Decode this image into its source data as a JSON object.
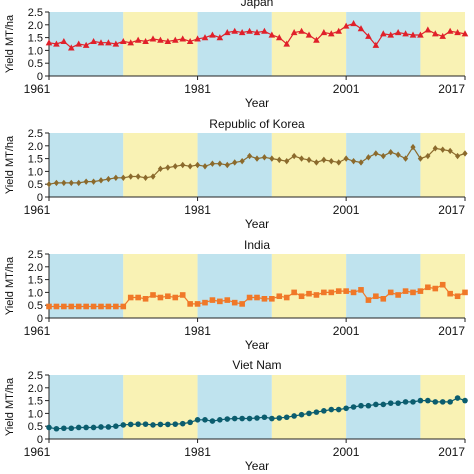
{
  "chart_data": [
    {
      "type": "line",
      "title": "Japan",
      "xlabel": "Year",
      "ylabel": "Yield MT/ha",
      "xlim": [
        1961,
        2017
      ],
      "ylim": [
        0,
        2.5
      ],
      "x_ticks": [
        1961,
        1981,
        2001,
        2017
      ],
      "y_ticks": [
        0,
        0.5,
        1.0,
        1.5,
        2.0,
        2.5
      ],
      "y_tick_labels": [
        "0",
        "0.5",
        "1.0",
        "1.5",
        "2.0",
        "2.5"
      ],
      "grid": false,
      "background_bands": [
        {
          "from": 1961,
          "to": 1971,
          "color": "#bfe3ee"
        },
        {
          "from": 1971,
          "to": 1981,
          "color": "#f9f2b4"
        },
        {
          "from": 1981,
          "to": 1991,
          "color": "#bfe3ee"
        },
        {
          "from": 1991,
          "to": 2001,
          "color": "#f9f2b4"
        },
        {
          "from": 2001,
          "to": 2011,
          "color": "#bfe3ee"
        },
        {
          "from": 2011,
          "to": 2017,
          "color": "#f9f2b4"
        }
      ],
      "series": [
        {
          "color": "#e0202a",
          "marker": "triangle",
          "x": [
            1961,
            1962,
            1963,
            1964,
            1965,
            1966,
            1967,
            1968,
            1969,
            1970,
            1971,
            1972,
            1973,
            1974,
            1975,
            1976,
            1977,
            1978,
            1979,
            1980,
            1981,
            1982,
            1983,
            1984,
            1985,
            1986,
            1987,
            1988,
            1989,
            1990,
            1991,
            1992,
            1993,
            1994,
            1995,
            1996,
            1997,
            1998,
            1999,
            2000,
            2001,
            2002,
            2003,
            2004,
            2005,
            2006,
            2007,
            2008,
            2009,
            2010,
            2011,
            2012,
            2013,
            2014,
            2015,
            2016,
            2017
          ],
          "values": [
            1.3,
            1.25,
            1.35,
            1.1,
            1.25,
            1.2,
            1.35,
            1.3,
            1.3,
            1.25,
            1.35,
            1.3,
            1.4,
            1.35,
            1.45,
            1.4,
            1.35,
            1.4,
            1.45,
            1.35,
            1.45,
            1.5,
            1.6,
            1.5,
            1.7,
            1.75,
            1.7,
            1.75,
            1.7,
            1.75,
            1.6,
            1.5,
            1.25,
            1.7,
            1.75,
            1.6,
            1.4,
            1.7,
            1.65,
            1.75,
            1.95,
            2.05,
            1.85,
            1.55,
            1.2,
            1.65,
            1.6,
            1.7,
            1.65,
            1.6,
            1.6,
            1.8,
            1.65,
            1.55,
            1.75,
            1.7,
            1.65
          ]
        }
      ]
    },
    {
      "type": "line",
      "title": "Republic of Korea",
      "xlabel": "Year",
      "ylabel": "Yield MT/ha",
      "xlim": [
        1961,
        2017
      ],
      "ylim": [
        0,
        2.5
      ],
      "x_ticks": [
        1961,
        1981,
        2001,
        2017
      ],
      "y_ticks": [
        0,
        0.5,
        1.0,
        1.5,
        2.0,
        2.5
      ],
      "y_tick_labels": [
        "0",
        "0.5",
        "1.0",
        "1.5",
        "2.0",
        "2.5"
      ],
      "grid": false,
      "background_bands": [
        {
          "from": 1961,
          "to": 1971,
          "color": "#bfe3ee"
        },
        {
          "from": 1971,
          "to": 1981,
          "color": "#f9f2b4"
        },
        {
          "from": 1981,
          "to": 1991,
          "color": "#bfe3ee"
        },
        {
          "from": 1991,
          "to": 2001,
          "color": "#f9f2b4"
        },
        {
          "from": 2001,
          "to": 2011,
          "color": "#bfe3ee"
        },
        {
          "from": 2011,
          "to": 2017,
          "color": "#f9f2b4"
        }
      ],
      "series": [
        {
          "color": "#8b6a2c",
          "marker": "diamond",
          "x": [
            1961,
            1962,
            1963,
            1964,
            1965,
            1966,
            1967,
            1968,
            1969,
            1970,
            1971,
            1972,
            1973,
            1974,
            1975,
            1976,
            1977,
            1978,
            1979,
            1980,
            1981,
            1982,
            1983,
            1984,
            1985,
            1986,
            1987,
            1988,
            1989,
            1990,
            1991,
            1992,
            1993,
            1994,
            1995,
            1996,
            1997,
            1998,
            1999,
            2000,
            2001,
            2002,
            2003,
            2004,
            2005,
            2006,
            2007,
            2008,
            2009,
            2010,
            2011,
            2012,
            2013,
            2014,
            2015,
            2016,
            2017
          ],
          "values": [
            0.5,
            0.55,
            0.55,
            0.55,
            0.55,
            0.6,
            0.6,
            0.65,
            0.7,
            0.75,
            0.75,
            0.8,
            0.8,
            0.75,
            0.8,
            1.1,
            1.15,
            1.2,
            1.25,
            1.2,
            1.25,
            1.2,
            1.3,
            1.3,
            1.25,
            1.35,
            1.4,
            1.6,
            1.5,
            1.55,
            1.5,
            1.45,
            1.4,
            1.6,
            1.5,
            1.45,
            1.35,
            1.45,
            1.4,
            1.35,
            1.5,
            1.4,
            1.35,
            1.55,
            1.7,
            1.6,
            1.75,
            1.65,
            1.5,
            1.95,
            1.5,
            1.6,
            1.9,
            1.85,
            1.8,
            1.6,
            1.7
          ]
        }
      ]
    },
    {
      "type": "line",
      "title": "India",
      "xlabel": "Year",
      "ylabel": "Yield MT/ha",
      "xlim": [
        1961,
        2017
      ],
      "ylim": [
        0,
        2.5
      ],
      "x_ticks": [
        1961,
        1981,
        2001,
        2017
      ],
      "y_ticks": [
        0,
        0.5,
        1.0,
        1.5,
        2.0,
        2.5
      ],
      "y_tick_labels": [
        "0",
        "0.5",
        "1.0",
        "1.5",
        "2.0",
        "2.5"
      ],
      "grid": false,
      "background_bands": [
        {
          "from": 1961,
          "to": 1971,
          "color": "#bfe3ee"
        },
        {
          "from": 1971,
          "to": 1981,
          "color": "#f9f2b4"
        },
        {
          "from": 1981,
          "to": 1991,
          "color": "#bfe3ee"
        },
        {
          "from": 1991,
          "to": 2001,
          "color": "#f9f2b4"
        },
        {
          "from": 2001,
          "to": 2011,
          "color": "#bfe3ee"
        },
        {
          "from": 2011,
          "to": 2017,
          "color": "#f9f2b4"
        }
      ],
      "series": [
        {
          "color": "#f07828",
          "marker": "square",
          "x": [
            1961,
            1962,
            1963,
            1964,
            1965,
            1966,
            1967,
            1968,
            1969,
            1970,
            1971,
            1972,
            1973,
            1974,
            1975,
            1976,
            1977,
            1978,
            1979,
            1980,
            1981,
            1982,
            1983,
            1984,
            1985,
            1986,
            1987,
            1988,
            1989,
            1990,
            1991,
            1992,
            1993,
            1994,
            1995,
            1996,
            1997,
            1998,
            1999,
            2000,
            2001,
            2002,
            2003,
            2004,
            2005,
            2006,
            2007,
            2008,
            2009,
            2010,
            2011,
            2012,
            2013,
            2014,
            2015,
            2016,
            2017
          ],
          "values": [
            0.45,
            0.45,
            0.45,
            0.45,
            0.45,
            0.45,
            0.45,
            0.45,
            0.45,
            0.45,
            0.45,
            0.8,
            0.8,
            0.75,
            0.9,
            0.8,
            0.85,
            0.8,
            0.9,
            0.55,
            0.55,
            0.6,
            0.7,
            0.65,
            0.7,
            0.6,
            0.55,
            0.8,
            0.8,
            0.75,
            0.75,
            0.85,
            0.8,
            1.0,
            0.85,
            0.95,
            0.9,
            1.0,
            1.0,
            1.05,
            1.05,
            1.0,
            1.1,
            0.7,
            0.85,
            0.75,
            1.0,
            0.9,
            1.05,
            1.0,
            1.05,
            1.2,
            1.15,
            1.3,
            0.95,
            0.85,
            1.0
          ]
        }
      ]
    },
    {
      "type": "line",
      "title": "Viet Nam",
      "xlabel": "Year",
      "ylabel": "Yield MT/ha",
      "xlim": [
        1961,
        2017
      ],
      "ylim": [
        0,
        2.5
      ],
      "x_ticks": [
        1961,
        1981,
        2001,
        2017
      ],
      "y_ticks": [
        0,
        0.5,
        1.0,
        1.5,
        2.0,
        2.5
      ],
      "y_tick_labels": [
        "0",
        "0.5",
        "1.0",
        "1.5",
        "2.0",
        "2.5"
      ],
      "grid": false,
      "background_bands": [
        {
          "from": 1961,
          "to": 1971,
          "color": "#bfe3ee"
        },
        {
          "from": 1971,
          "to": 1981,
          "color": "#f9f2b4"
        },
        {
          "from": 1981,
          "to": 1991,
          "color": "#bfe3ee"
        },
        {
          "from": 1991,
          "to": 2001,
          "color": "#f9f2b4"
        },
        {
          "from": 2001,
          "to": 2011,
          "color": "#bfe3ee"
        },
        {
          "from": 2011,
          "to": 2017,
          "color": "#f9f2b4"
        }
      ],
      "series": [
        {
          "color": "#0b5d6e",
          "marker": "circle",
          "x": [
            1961,
            1962,
            1963,
            1964,
            1965,
            1966,
            1967,
            1968,
            1969,
            1970,
            1971,
            1972,
            1973,
            1974,
            1975,
            1976,
            1977,
            1978,
            1979,
            1980,
            1981,
            1982,
            1983,
            1984,
            1985,
            1986,
            1987,
            1988,
            1989,
            1990,
            1991,
            1992,
            1993,
            1994,
            1995,
            1996,
            1997,
            1998,
            1999,
            2000,
            2001,
            2002,
            2003,
            2004,
            2005,
            2006,
            2007,
            2008,
            2009,
            2010,
            2011,
            2012,
            2013,
            2014,
            2015,
            2016,
            2017
          ],
          "values": [
            0.45,
            0.4,
            0.42,
            0.42,
            0.45,
            0.45,
            0.45,
            0.47,
            0.47,
            0.5,
            0.55,
            0.57,
            0.58,
            0.58,
            0.55,
            0.57,
            0.57,
            0.58,
            0.6,
            0.65,
            0.75,
            0.75,
            0.7,
            0.75,
            0.78,
            0.8,
            0.8,
            0.8,
            0.82,
            0.85,
            0.8,
            0.82,
            0.85,
            0.9,
            0.95,
            1.0,
            1.05,
            1.1,
            1.15,
            1.15,
            1.2,
            1.25,
            1.3,
            1.3,
            1.35,
            1.35,
            1.4,
            1.4,
            1.45,
            1.45,
            1.5,
            1.5,
            1.45,
            1.45,
            1.45,
            1.6,
            1.5
          ]
        }
      ]
    }
  ]
}
